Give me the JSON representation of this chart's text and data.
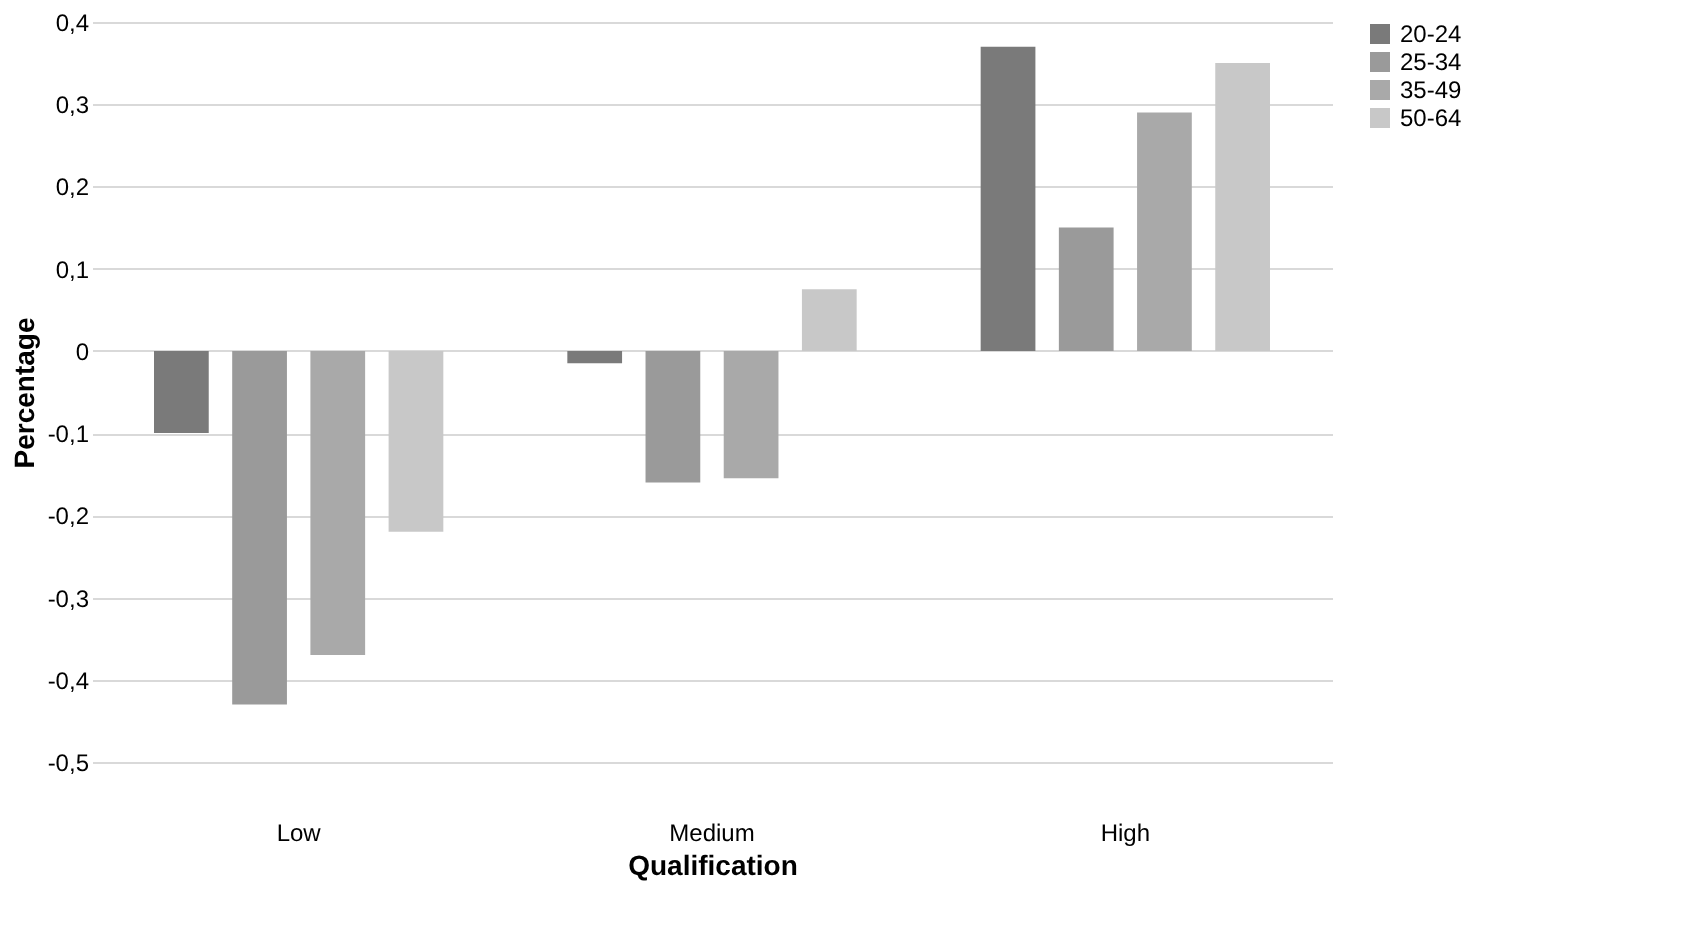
{
  "chart_data": {
    "type": "bar",
    "xlabel": "Qualification",
    "ylabel": "Percentage",
    "categories": [
      "Low",
      "Medium",
      "High"
    ],
    "series": [
      {
        "name": "20-24",
        "color": "#7a7a7a",
        "values": [
          -0.1,
          -0.015,
          0.37
        ]
      },
      {
        "name": "25-34",
        "color": "#9a9a9a",
        "values": [
          -0.43,
          -0.16,
          0.15
        ]
      },
      {
        "name": "35-49",
        "color": "#a9a9a9",
        "values": [
          -0.37,
          -0.155,
          0.29
        ]
      },
      {
        "name": "50-64",
        "color": "#c8c8c8",
        "values": [
          -0.22,
          0.075,
          0.35
        ]
      }
    ],
    "ylim": [
      -0.5,
      0.4
    ],
    "yticks": [
      {
        "value": -0.5,
        "label": "-0,5"
      },
      {
        "value": -0.4,
        "label": "-0,4"
      },
      {
        "value": -0.3,
        "label": "-0,3"
      },
      {
        "value": -0.2,
        "label": "-0,2"
      },
      {
        "value": -0.1,
        "label": "-0,1"
      },
      {
        "value": 0,
        "label": "0"
      },
      {
        "value": 0.1,
        "label": "0,1"
      },
      {
        "value": 0.2,
        "label": "0,2"
      },
      {
        "value": 0.3,
        "label": "0,3"
      },
      {
        "value": 0.4,
        "label": "0,4"
      }
    ],
    "grid": "y",
    "legend": "right"
  }
}
